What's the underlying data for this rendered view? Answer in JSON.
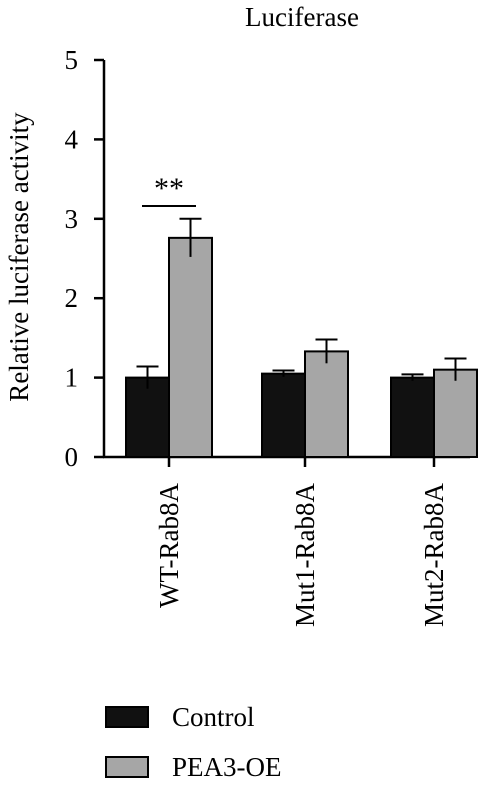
{
  "chart_data": {
    "type": "bar",
    "title": "Luciferase",
    "xlabel": "",
    "ylabel": "Relative luciferase activity",
    "ylim": [
      0,
      5
    ],
    "yticks": [
      "0",
      "1",
      "2",
      "3",
      "4",
      "5"
    ],
    "categories": [
      "WT-Rab8A",
      "Mut1-Rab8A",
      "Mut2-Rab8A"
    ],
    "series": [
      {
        "name": "Control",
        "color": "#111111",
        "values": [
          1.0,
          1.05,
          1.0
        ],
        "errors": [
          0.14,
          0.04,
          0.04
        ]
      },
      {
        "name": "PEA3-OE",
        "color": "#a6a6a6",
        "values": [
          2.76,
          1.33,
          1.1
        ],
        "errors": [
          0.24,
          0.15,
          0.14
        ]
      }
    ],
    "annotations": [
      {
        "text": "**",
        "category": "WT-Rab8A"
      }
    ],
    "legend": {
      "placement": "bottom-left"
    },
    "grid": false
  }
}
